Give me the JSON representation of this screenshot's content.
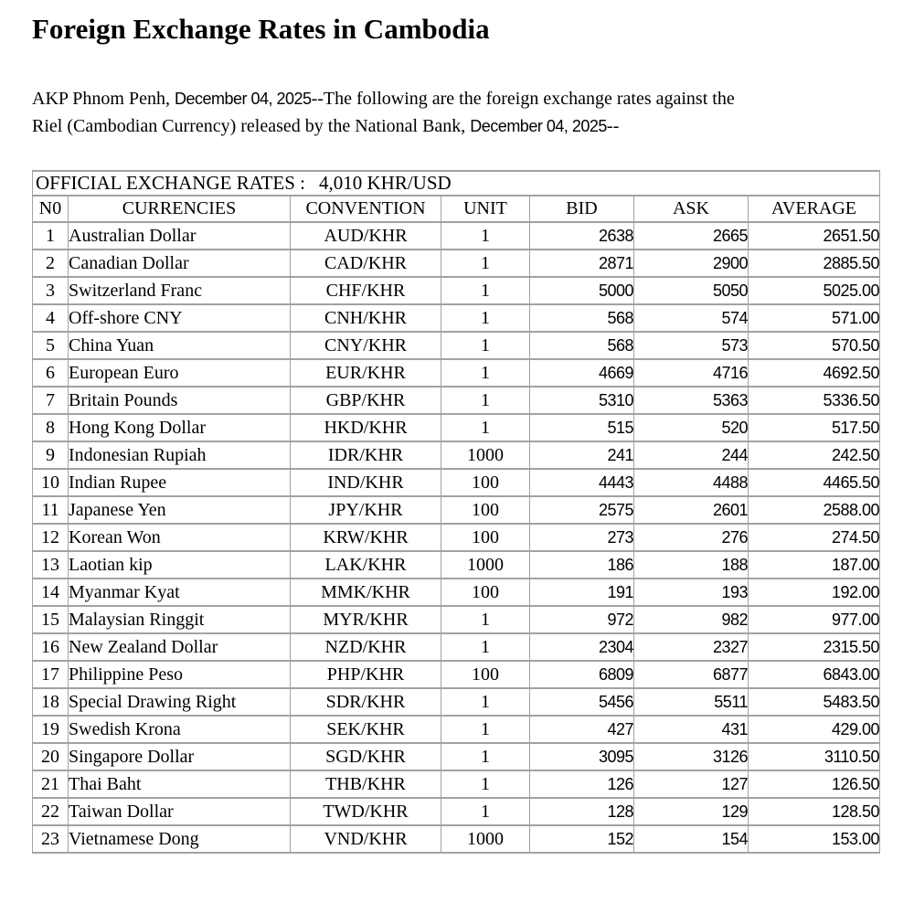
{
  "title": "Foreign Exchange Rates in Cambodia",
  "intro": {
    "line1_pre": "AKP Phnom Penh, ",
    "line1_date": "December 04, 2025",
    "line1_rest": "--The following are the foreign exchange rates against the",
    "line2_pre": "Riel (Cambodian Currency) released by the National Bank, ",
    "line2_date": "December 04, 2025",
    "line2_end": "--"
  },
  "table": {
    "official_label": "OFFICIAL EXCHANGE RATES :",
    "official_value": "4,010 KHR/USD",
    "columns": [
      "N0",
      "CURRENCIES",
      "CONVENTION",
      "UNIT",
      "BID",
      "ASK",
      "AVERAGE"
    ],
    "rows": [
      [
        "1",
        "Australian Dollar",
        "AUD/KHR",
        "1",
        "2638",
        "2665",
        "2651.50"
      ],
      [
        "2",
        "Canadian Dollar",
        "CAD/KHR",
        "1",
        "2871",
        "2900",
        "2885.50"
      ],
      [
        "3",
        "Switzerland Franc",
        "CHF/KHR",
        "1",
        "5000",
        "5050",
        "5025.00"
      ],
      [
        "4",
        "Off-shore CNY",
        "CNH/KHR",
        "1",
        "568",
        "574",
        "571.00"
      ],
      [
        "5",
        "China Yuan",
        "CNY/KHR",
        "1",
        "568",
        "573",
        "570.50"
      ],
      [
        "6",
        "European Euro",
        "EUR/KHR",
        "1",
        "4669",
        "4716",
        "4692.50"
      ],
      [
        "7",
        "Britain Pounds",
        "GBP/KHR",
        "1",
        "5310",
        "5363",
        "5336.50"
      ],
      [
        "8",
        "Hong Kong Dollar",
        "HKD/KHR",
        "1",
        "515",
        "520",
        "517.50"
      ],
      [
        "9",
        "Indonesian Rupiah",
        "IDR/KHR",
        "1000",
        "241",
        "244",
        "242.50"
      ],
      [
        "10",
        "Indian Rupee",
        "IND/KHR",
        "100",
        "4443",
        "4488",
        "4465.50"
      ],
      [
        "11",
        "Japanese Yen",
        "JPY/KHR",
        "100",
        "2575",
        "2601",
        "2588.00"
      ],
      [
        "12",
        "Korean Won",
        "KRW/KHR",
        "100",
        "273",
        "276",
        "274.50"
      ],
      [
        "13",
        "Laotian kip",
        "LAK/KHR",
        "1000",
        "186",
        "188",
        "187.00"
      ],
      [
        "14",
        "Myanmar Kyat",
        "MMK/KHR",
        "100",
        "191",
        "193",
        "192.00"
      ],
      [
        "15",
        "Malaysian Ringgit",
        "MYR/KHR",
        "1",
        "972",
        "982",
        "977.00"
      ],
      [
        "16",
        "New Zealand Dollar",
        "NZD/KHR",
        "1",
        "2304",
        "2327",
        "2315.50"
      ],
      [
        "17",
        "Philippine Peso",
        "PHP/KHR",
        "100",
        "6809",
        "6877",
        "6843.00"
      ],
      [
        "18",
        "Special Drawing Right",
        "SDR/KHR",
        "1",
        "5456",
        "5511",
        "5483.50"
      ],
      [
        "19",
        "Swedish Krona",
        "SEK/KHR",
        "1",
        "427",
        "431",
        "429.00"
      ],
      [
        "20",
        "Singapore Dollar",
        "SGD/KHR",
        "1",
        "3095",
        "3126",
        "3110.50"
      ],
      [
        "21",
        "Thai Baht",
        "THB/KHR",
        "1",
        "126",
        "127",
        "126.50"
      ],
      [
        "22",
        "Taiwan Dollar",
        "TWD/KHR",
        "1",
        "128",
        "129",
        "128.50"
      ],
      [
        "23",
        "Vietnamese Dong",
        "VND/KHR",
        "1000",
        "152",
        "154",
        "153.00"
      ]
    ]
  }
}
